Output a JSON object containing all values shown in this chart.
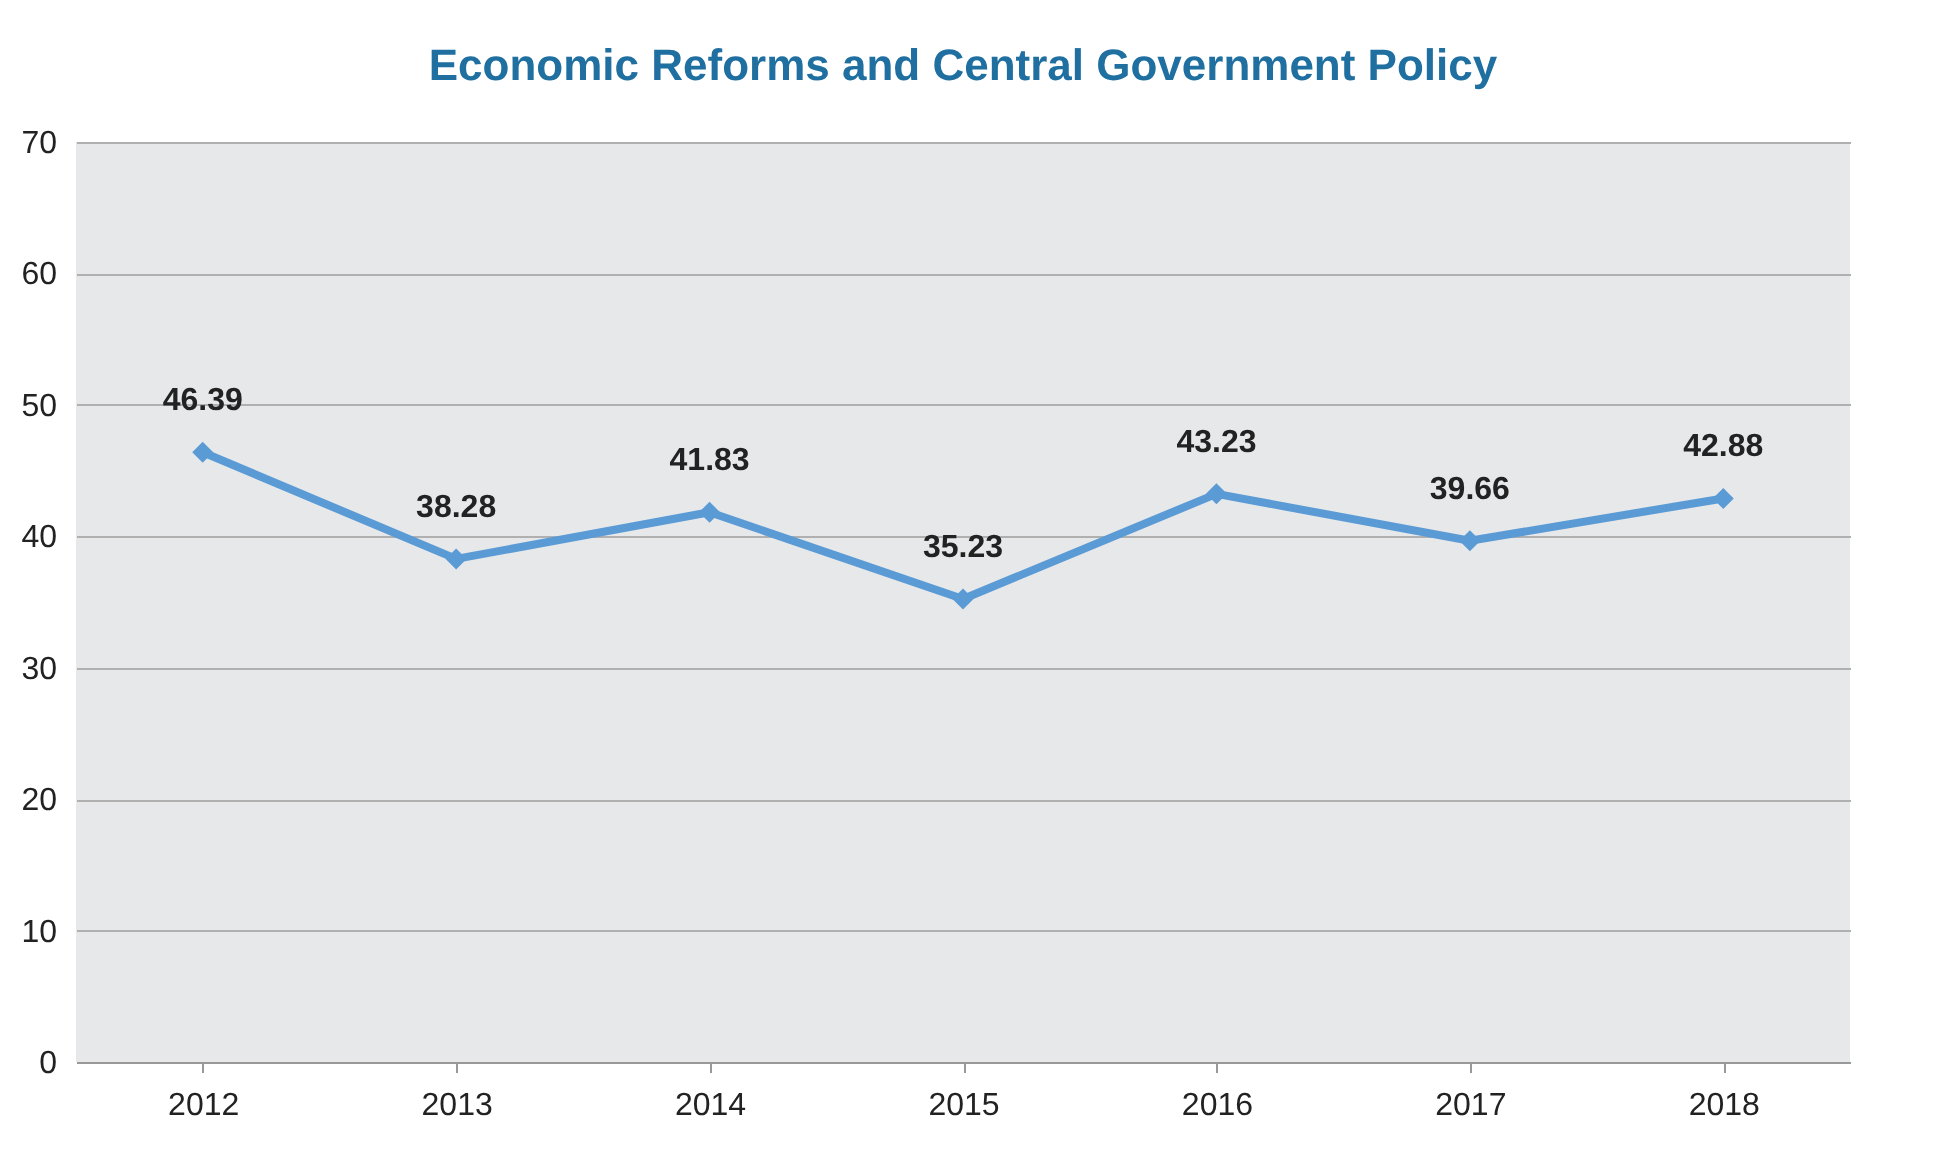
{
  "chart_data": {
    "type": "line",
    "title": "Economic Reforms and Central Government Policy",
    "categories": [
      "2012",
      "2013",
      "2014",
      "2015",
      "2016",
      "2017",
      "2018"
    ],
    "series": [
      {
        "color": "#5b9bd5",
        "values": [
          46.39,
          38.28,
          41.83,
          35.23,
          43.23,
          39.66,
          42.88
        ]
      }
    ],
    "ylim": [
      0,
      70
    ],
    "yticks": [
      0,
      10,
      20,
      30,
      40,
      50,
      60,
      70
    ],
    "grid": "y",
    "marker": "diamond",
    "line_style": "solid",
    "data_labels": true
  }
}
